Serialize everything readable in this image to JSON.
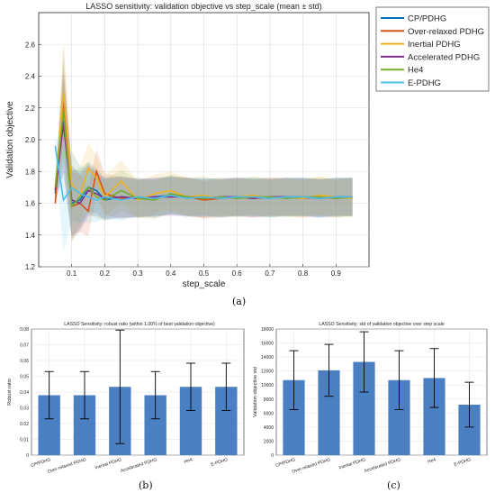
{
  "captions": {
    "a": "(a)",
    "b": "(b)",
    "c": "(c)"
  },
  "chart_data": [
    {
      "id": "a",
      "type": "line",
      "title": "LASSO sensitivity: validation objective vs step_scale (mean ± std)",
      "xlabel": "step_scale",
      "ylabel": "Validation objective",
      "xlim": [
        0,
        1
      ],
      "ylim": [
        1.2,
        2.8
      ],
      "xticks": [
        0.1,
        0.2,
        0.3,
        0.4,
        0.5,
        0.6,
        0.7,
        0.8,
        0.9
      ],
      "yticks": [
        1.2,
        1.4,
        1.6,
        1.8,
        2.0,
        2.2,
        2.4,
        2.6
      ],
      "grid": true,
      "legend_position": "outside-right",
      "x": [
        0.05,
        0.075,
        0.1,
        0.125,
        0.15,
        0.175,
        0.2,
        0.25,
        0.3,
        0.35,
        0.4,
        0.45,
        0.5,
        0.55,
        0.6,
        0.65,
        0.7,
        0.75,
        0.8,
        0.85,
        0.9,
        0.95
      ],
      "series": [
        {
          "name": "CP/PDHG",
          "color": "#0072bd",
          "values": [
            1.66,
            2.12,
            1.6,
            1.62,
            1.7,
            1.68,
            1.62,
            1.64,
            1.63,
            1.64,
            1.65,
            1.64,
            1.64,
            1.63,
            1.64,
            1.64,
            1.63,
            1.64,
            1.64,
            1.63,
            1.64,
            1.64
          ]
        },
        {
          "name": "Over-relaxed PDHG",
          "color": "#d95319",
          "values": [
            1.6,
            2.26,
            1.58,
            1.6,
            1.55,
            1.8,
            1.66,
            1.63,
            1.64,
            1.63,
            1.65,
            1.64,
            1.62,
            1.63,
            1.64,
            1.63,
            1.64,
            1.64,
            1.63,
            1.64,
            1.63,
            1.64
          ]
        },
        {
          "name": "Inertial PDHG",
          "color": "#edb120",
          "values": [
            1.68,
            2.3,
            1.72,
            1.65,
            1.82,
            1.76,
            1.64,
            1.74,
            1.62,
            1.66,
            1.68,
            1.64,
            1.65,
            1.63,
            1.64,
            1.65,
            1.63,
            1.64,
            1.63,
            1.65,
            1.64,
            1.63
          ]
        },
        {
          "name": "Accelerated PDHG",
          "color": "#7e2f8e",
          "values": [
            1.68,
            2.1,
            1.62,
            1.6,
            1.68,
            1.66,
            1.63,
            1.64,
            1.63,
            1.64,
            1.64,
            1.64,
            1.63,
            1.64,
            1.64,
            1.63,
            1.64,
            1.64,
            1.64,
            1.63,
            1.64,
            1.64
          ]
        },
        {
          "name": "He4",
          "color": "#77ac30",
          "values": [
            1.7,
            2.18,
            1.58,
            1.64,
            1.7,
            1.64,
            1.62,
            1.68,
            1.63,
            1.62,
            1.66,
            1.64,
            1.63,
            1.64,
            1.63,
            1.64,
            1.64,
            1.63,
            1.64,
            1.64,
            1.63,
            1.64
          ]
        },
        {
          "name": "E-PDHG",
          "color": "#4dbeee",
          "values": [
            1.96,
            1.62,
            1.7,
            1.66,
            1.64,
            1.62,
            1.64,
            1.62,
            1.64,
            1.63,
            1.65,
            1.63,
            1.64,
            1.63,
            1.64,
            1.64,
            1.63,
            1.64,
            1.64,
            1.63,
            1.64,
            1.64
          ]
        }
      ],
      "std": [
        0.06,
        0.32,
        0.22,
        0.18,
        0.16,
        0.14,
        0.13,
        0.13,
        0.12,
        0.12,
        0.12,
        0.12,
        0.12,
        0.12,
        0.12,
        0.12,
        0.12,
        0.12,
        0.12,
        0.12,
        0.12,
        0.12
      ]
    },
    {
      "id": "b",
      "type": "bar",
      "title": "LASSO Sensitivity: robust ratio (within 1.00% of best validation objective)",
      "xlabel": "",
      "ylabel": "Robust ratio",
      "ylim": [
        0,
        0.08
      ],
      "yticks": [
        0,
        0.01,
        0.02,
        0.03,
        0.04,
        0.05,
        0.06,
        0.07,
        0.08
      ],
      "grid": true,
      "bar_color": "#4a7fc1",
      "categories": [
        "CP/PDHG",
        "Over-relaxed PDHG",
        "Inertial PDHG",
        "Accelerated PDHG",
        "He4",
        "E-PDHG"
      ],
      "values": [
        0.038,
        0.038,
        0.0433,
        0.038,
        0.0433,
        0.0433
      ],
      "errors": [
        0.015,
        0.015,
        0.036,
        0.015,
        0.015,
        0.015
      ]
    },
    {
      "id": "c",
      "type": "bar",
      "title": "LASSO Sensitivity: std of validation objective over step scale",
      "xlabel": "",
      "ylabel": "Validation objective std",
      "ylim": [
        0,
        18000
      ],
      "yticks": [
        0,
        2000,
        4000,
        6000,
        8000,
        10000,
        12000,
        14000,
        16000,
        18000
      ],
      "grid": true,
      "bar_color": "#4a7fc1",
      "categories": [
        "CP/PDHG",
        "Over-relaxed PDHG",
        "Inertial PDHG",
        "Accelerated PDHG",
        "He4",
        "E-PDHG"
      ],
      "values": [
        10700,
        12100,
        13300,
        10700,
        11000,
        7200
      ],
      "errors": [
        4200,
        3700,
        4300,
        4200,
        4200,
        3200
      ]
    }
  ]
}
